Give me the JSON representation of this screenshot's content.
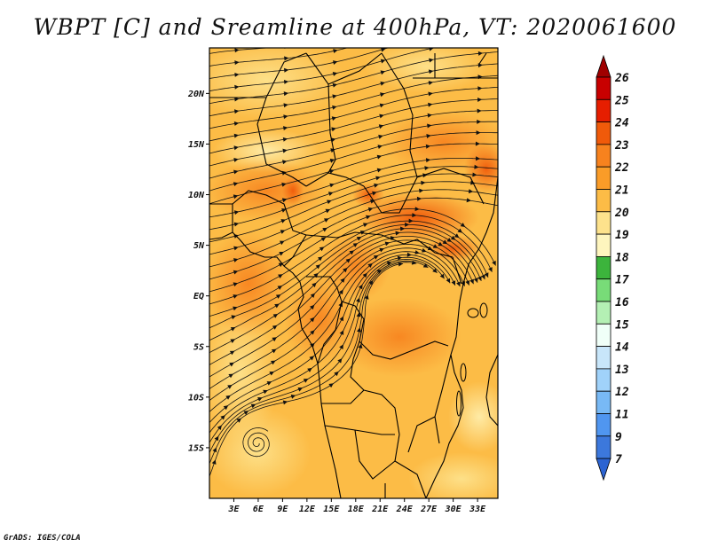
{
  "title": "WBPT [C] and Sreamline at 400hPa, VT: 2020061600",
  "credit": "GrADS: IGES/COLA",
  "map": {
    "lat_labels": [
      "20N",
      "15N",
      "10N",
      "5N",
      "EQ",
      "5S",
      "10S",
      "15S"
    ],
    "lon_labels": [
      "3E",
      "6E",
      "9E",
      "12E",
      "15E",
      "18E",
      "21E",
      "24E",
      "27E",
      "30E",
      "33E"
    ],
    "lat_range": [
      -20,
      24.5
    ],
    "lon_range": [
      0,
      35.5
    ],
    "field": "wet-bulb potential temperature",
    "field_level": "400hPa"
  },
  "colorbar": {
    "labels": [
      "26",
      "25",
      "24",
      "23",
      "22",
      "21",
      "20",
      "19",
      "18",
      "17",
      "16",
      "15",
      "14",
      "13",
      "12",
      "11",
      "9",
      "7"
    ],
    "colors": [
      "#a00000",
      "#c80000",
      "#e61e00",
      "#f05a0a",
      "#f7821e",
      "#fa9c28",
      "#fcbc46",
      "#fde28c",
      "#fef5be",
      "#3cb43c",
      "#78dc78",
      "#b4f0b4",
      "#f0fff8",
      "#c8e6fa",
      "#a0d2fa",
      "#78b9f5",
      "#5096f0",
      "#3c78dc",
      "#2c64d2"
    ]
  }
}
